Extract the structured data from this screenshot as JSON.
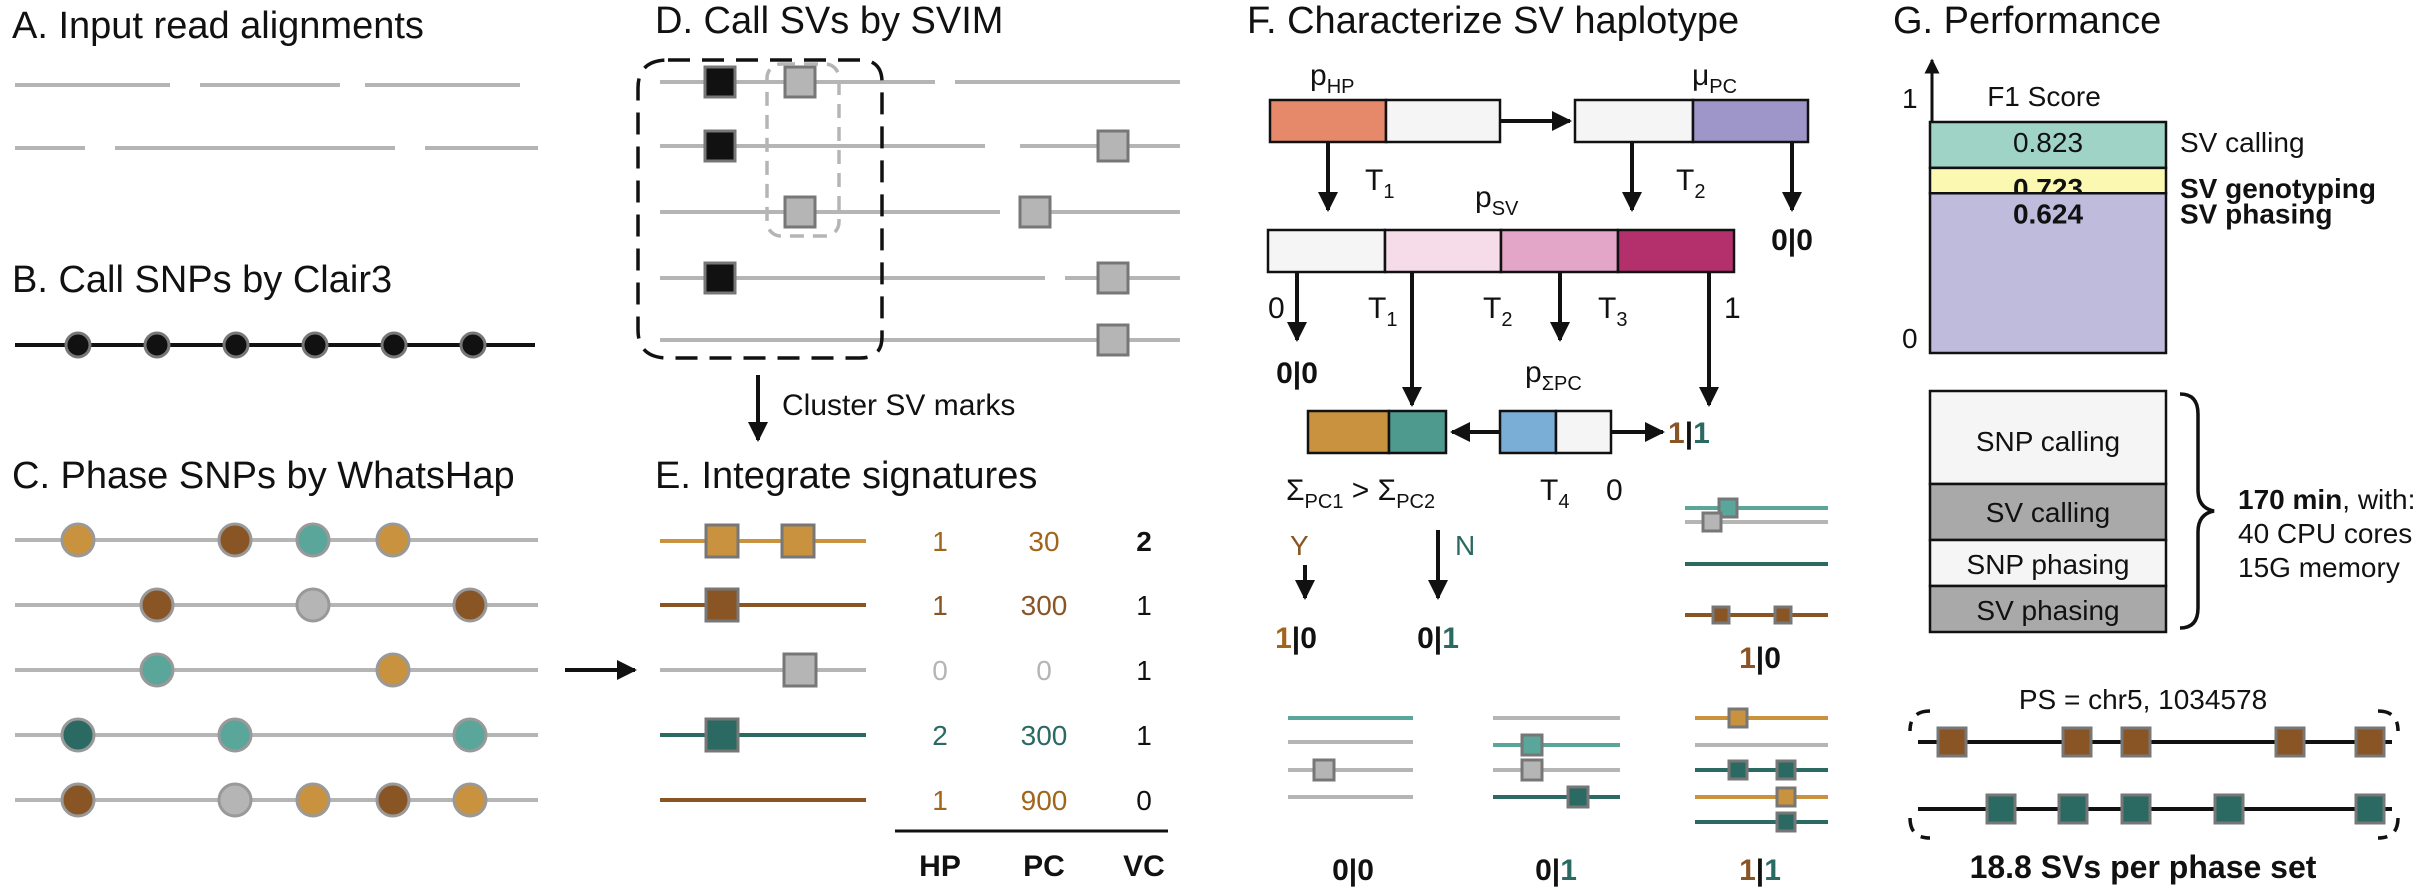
{
  "colors": {
    "gray": "#b5b5b5",
    "dark": "#111111",
    "ochre": "#c8923f",
    "brown": "#8a5524",
    "teal": "#5aa69a",
    "dark_teal": "#2a6a62",
    "salmon": "#e6896b",
    "purple": "#9e96c8",
    "pink_light": "#f6dbe9",
    "pink_mid": "#e3a5c8",
    "magenta": "#b4306d",
    "blue": "#7baed6",
    "mint": "#9ed3c6",
    "yellow": "#fbf8b2",
    "lavender": "#bfbbdc",
    "box_gray": "#a9a9a9"
  },
  "panel_a": {
    "title": "A. Input read alignments"
  },
  "panel_b": {
    "title": "B. Call SNPs by Clair3"
  },
  "panel_c": {
    "title": "C. Phase SNPs by WhatsHap"
  },
  "panel_d": {
    "title": "D. Call SVs by SVIM",
    "arrow_label": "Cluster SV marks"
  },
  "panel_e": {
    "title": "E. Integrate signatures",
    "headers": [
      "HP",
      "PC",
      "VC"
    ],
    "rows": [
      {
        "hp": "1",
        "pc": "30",
        "vc": "2"
      },
      {
        "hp": "1",
        "pc": "300",
        "vc": "1"
      },
      {
        "hp": "0",
        "pc": "0",
        "vc": "1"
      },
      {
        "hp": "2",
        "pc": "300",
        "vc": "1"
      },
      {
        "hp": "1",
        "pc": "900",
        "vc": "0"
      }
    ]
  },
  "panel_f": {
    "title": "F. Characterize SV haplotype",
    "p_hp": {
      "base": "p",
      "sub": "HP"
    },
    "mu_pc": {
      "base": "μ",
      "sub": "PC"
    },
    "p_sv": {
      "base": "p",
      "sub": "SV"
    },
    "p_sum_pc": {
      "base": "p",
      "sub": "ΣPC"
    },
    "t1": {
      "base": "T",
      "sub": "1"
    },
    "t2": {
      "base": "T",
      "sub": "2"
    },
    "t3": {
      "base": "T",
      "sub": "3"
    },
    "t4": {
      "base": "T",
      "sub": "4"
    },
    "zero": "0",
    "one": "1",
    "gt_00": "0|0",
    "gt_11": "1|1",
    "gt_10": "1|0",
    "gt_01": "0|1",
    "compare": {
      "left": "Σ",
      "left_sub": "PC1",
      "op": " > ",
      "right": "Σ",
      "right_sub": "PC2"
    },
    "yes": "Y",
    "no": "N"
  },
  "panel_g": {
    "title": "G. Performance",
    "axis_top": "1",
    "axis_bottom": "0",
    "metric": "F1 Score",
    "bars": [
      {
        "label": "SV calling",
        "value": "0.823",
        "score": 0.823
      },
      {
        "label": "SV genotyping",
        "value": "0.723",
        "score": 0.723
      },
      {
        "label": "SV phasing",
        "value": "0.624",
        "score": 0.624
      }
    ],
    "steps": [
      "SNP calling",
      "SV calling",
      "SNP phasing",
      "SV phasing"
    ],
    "runtime_bold": "170 min",
    "runtime_rest": ", with:",
    "cpu": "40 CPU cores",
    "memory": "15G memory",
    "ps_label": "PS = chr5, 1034578",
    "svs_per_set": "18.8 SVs per phase set"
  }
}
